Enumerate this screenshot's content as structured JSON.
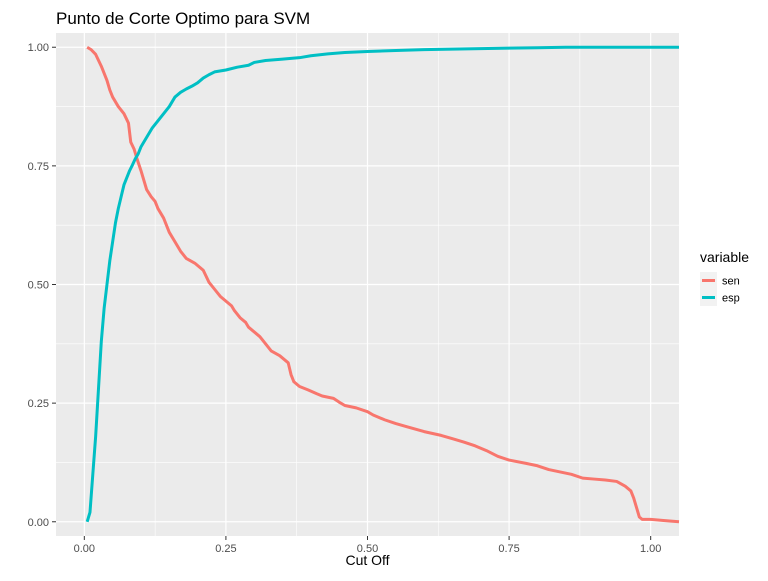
{
  "chart_data": {
    "type": "line",
    "title": "Punto de Corte Optimo para SVM",
    "xlabel": "Cut Off",
    "ylabel": "",
    "xlim": [
      -0.05,
      1.05
    ],
    "ylim": [
      -0.03,
      1.03
    ],
    "x_ticks": [
      0.0,
      0.25,
      0.5,
      0.75,
      1.0
    ],
    "x_tick_labels": [
      "0.00",
      "0.25",
      "0.50",
      "0.75",
      "1.00"
    ],
    "y_ticks": [
      0.0,
      0.25,
      0.5,
      0.75,
      1.0
    ],
    "y_tick_labels": [
      "0.00",
      "0.25",
      "0.50",
      "0.75",
      "1.00"
    ],
    "grid": true,
    "legend": {
      "title": "variable",
      "position": "right"
    },
    "series": [
      {
        "name": "sen",
        "color": "#F8766D",
        "points": [
          [
            0.005,
            1.0
          ],
          [
            0.012,
            0.995
          ],
          [
            0.02,
            0.985
          ],
          [
            0.03,
            0.96
          ],
          [
            0.04,
            0.93
          ],
          [
            0.045,
            0.91
          ],
          [
            0.05,
            0.895
          ],
          [
            0.06,
            0.875
          ],
          [
            0.07,
            0.86
          ],
          [
            0.078,
            0.84
          ],
          [
            0.082,
            0.8
          ],
          [
            0.088,
            0.785
          ],
          [
            0.093,
            0.765
          ],
          [
            0.1,
            0.74
          ],
          [
            0.105,
            0.72
          ],
          [
            0.11,
            0.7
          ],
          [
            0.118,
            0.685
          ],
          [
            0.125,
            0.675
          ],
          [
            0.13,
            0.66
          ],
          [
            0.14,
            0.64
          ],
          [
            0.15,
            0.61
          ],
          [
            0.16,
            0.59
          ],
          [
            0.17,
            0.57
          ],
          [
            0.18,
            0.555
          ],
          [
            0.195,
            0.545
          ],
          [
            0.21,
            0.53
          ],
          [
            0.22,
            0.505
          ],
          [
            0.23,
            0.49
          ],
          [
            0.24,
            0.475
          ],
          [
            0.25,
            0.465
          ],
          [
            0.26,
            0.455
          ],
          [
            0.265,
            0.445
          ],
          [
            0.275,
            0.43
          ],
          [
            0.285,
            0.42
          ],
          [
            0.29,
            0.41
          ],
          [
            0.3,
            0.4
          ],
          [
            0.31,
            0.39
          ],
          [
            0.32,
            0.375
          ],
          [
            0.33,
            0.36
          ],
          [
            0.345,
            0.35
          ],
          [
            0.36,
            0.335
          ],
          [
            0.365,
            0.31
          ],
          [
            0.37,
            0.295
          ],
          [
            0.38,
            0.285
          ],
          [
            0.395,
            0.278
          ],
          [
            0.41,
            0.27
          ],
          [
            0.42,
            0.265
          ],
          [
            0.44,
            0.26
          ],
          [
            0.45,
            0.252
          ],
          [
            0.46,
            0.245
          ],
          [
            0.48,
            0.24
          ],
          [
            0.5,
            0.232
          ],
          [
            0.51,
            0.225
          ],
          [
            0.53,
            0.215
          ],
          [
            0.55,
            0.207
          ],
          [
            0.57,
            0.2
          ],
          [
            0.6,
            0.19
          ],
          [
            0.63,
            0.182
          ],
          [
            0.65,
            0.175
          ],
          [
            0.67,
            0.168
          ],
          [
            0.69,
            0.16
          ],
          [
            0.71,
            0.15
          ],
          [
            0.73,
            0.138
          ],
          [
            0.75,
            0.13
          ],
          [
            0.78,
            0.123
          ],
          [
            0.8,
            0.118
          ],
          [
            0.82,
            0.11
          ],
          [
            0.84,
            0.105
          ],
          [
            0.86,
            0.1
          ],
          [
            0.88,
            0.092
          ],
          [
            0.9,
            0.09
          ],
          [
            0.92,
            0.088
          ],
          [
            0.94,
            0.085
          ],
          [
            0.955,
            0.075
          ],
          [
            0.965,
            0.065
          ],
          [
            0.97,
            0.05
          ],
          [
            0.975,
            0.03
          ],
          [
            0.98,
            0.01
          ],
          [
            0.985,
            0.005
          ],
          [
            1.0,
            0.005
          ],
          [
            1.02,
            0.003
          ],
          [
            1.05,
            0.0
          ]
        ]
      },
      {
        "name": "esp",
        "color": "#00BFC4",
        "points": [
          [
            0.005,
            0.0
          ],
          [
            0.01,
            0.02
          ],
          [
            0.015,
            0.1
          ],
          [
            0.02,
            0.18
          ],
          [
            0.025,
            0.28
          ],
          [
            0.03,
            0.38
          ],
          [
            0.035,
            0.45
          ],
          [
            0.04,
            0.5
          ],
          [
            0.045,
            0.55
          ],
          [
            0.05,
            0.59
          ],
          [
            0.055,
            0.63
          ],
          [
            0.06,
            0.66
          ],
          [
            0.065,
            0.685
          ],
          [
            0.07,
            0.71
          ],
          [
            0.075,
            0.725
          ],
          [
            0.08,
            0.74
          ],
          [
            0.085,
            0.752
          ],
          [
            0.09,
            0.765
          ],
          [
            0.095,
            0.775
          ],
          [
            0.1,
            0.79
          ],
          [
            0.11,
            0.81
          ],
          [
            0.12,
            0.83
          ],
          [
            0.13,
            0.845
          ],
          [
            0.14,
            0.86
          ],
          [
            0.15,
            0.875
          ],
          [
            0.16,
            0.895
          ],
          [
            0.17,
            0.905
          ],
          [
            0.18,
            0.912
          ],
          [
            0.19,
            0.918
          ],
          [
            0.2,
            0.925
          ],
          [
            0.21,
            0.935
          ],
          [
            0.22,
            0.942
          ],
          [
            0.23,
            0.948
          ],
          [
            0.25,
            0.952
          ],
          [
            0.27,
            0.958
          ],
          [
            0.29,
            0.962
          ],
          [
            0.3,
            0.968
          ],
          [
            0.32,
            0.972
          ],
          [
            0.35,
            0.975
          ],
          [
            0.38,
            0.978
          ],
          [
            0.4,
            0.982
          ],
          [
            0.43,
            0.986
          ],
          [
            0.46,
            0.989
          ],
          [
            0.5,
            0.991
          ],
          [
            0.55,
            0.993
          ],
          [
            0.6,
            0.995
          ],
          [
            0.65,
            0.996
          ],
          [
            0.7,
            0.997
          ],
          [
            0.75,
            0.998
          ],
          [
            0.8,
            0.999
          ],
          [
            0.85,
            1.0
          ],
          [
            0.9,
            1.0
          ],
          [
            0.95,
            1.0
          ],
          [
            1.0,
            1.0
          ],
          [
            1.05,
            1.0
          ]
        ]
      }
    ]
  }
}
